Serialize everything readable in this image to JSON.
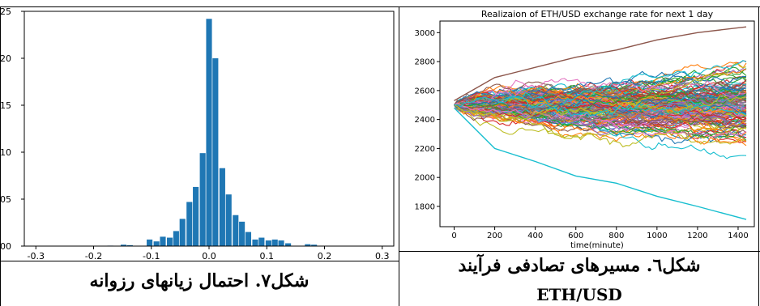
{
  "chart_data": [
    {
      "type": "bar",
      "title": "",
      "xlabel": "",
      "ylabel": "",
      "xlim": [
        -0.32,
        0.32
      ],
      "ylim": [
        0,
        25
      ],
      "x_ticks": [
        "-0.3",
        "-0.2",
        "-0.1",
        "0.0",
        "0.1",
        "0.2",
        "0.3"
      ],
      "y_ticks": [
        "00",
        "05",
        "10",
        "15",
        "20",
        "25"
      ],
      "bar_color": "#1f77b4",
      "bin_width": 0.0114,
      "bins": [
        {
          "x": -0.171,
          "y": 0.05
        },
        {
          "x": -0.148,
          "y": 0.15
        },
        {
          "x": -0.137,
          "y": 0.1
        },
        {
          "x": -0.103,
          "y": 0.7
        },
        {
          "x": -0.091,
          "y": 0.5
        },
        {
          "x": -0.08,
          "y": 1.0
        },
        {
          "x": -0.068,
          "y": 0.9
        },
        {
          "x": -0.057,
          "y": 1.6
        },
        {
          "x": -0.046,
          "y": 2.9
        },
        {
          "x": -0.034,
          "y": 4.7
        },
        {
          "x": -0.023,
          "y": 6.3
        },
        {
          "x": -0.011,
          "y": 9.9
        },
        {
          "x": 0.0,
          "y": 24.2
        },
        {
          "x": 0.011,
          "y": 20.0
        },
        {
          "x": 0.023,
          "y": 8.3
        },
        {
          "x": 0.034,
          "y": 5.5
        },
        {
          "x": 0.046,
          "y": 3.3
        },
        {
          "x": 0.057,
          "y": 2.6
        },
        {
          "x": 0.068,
          "y": 1.5
        },
        {
          "x": 0.08,
          "y": 0.7
        },
        {
          "x": 0.091,
          "y": 0.9
        },
        {
          "x": 0.103,
          "y": 0.6
        },
        {
          "x": 0.114,
          "y": 0.7
        },
        {
          "x": 0.125,
          "y": 0.6
        },
        {
          "x": 0.137,
          "y": 0.3
        },
        {
          "x": 0.171,
          "y": 0.2
        },
        {
          "x": 0.182,
          "y": 0.15
        }
      ]
    },
    {
      "type": "line",
      "title": "Realizaion of ETH/USD exchange rate for next 1 day",
      "xlabel": "time(minute)",
      "ylabel": "",
      "xlim": [
        -70,
        1480
      ],
      "ylim": [
        1660,
        3080
      ],
      "x_ticks": [
        "0",
        "200",
        "400",
        "600",
        "800",
        "1000",
        "1200",
        "1400"
      ],
      "y_ticks": [
        "1800",
        "2000",
        "2200",
        "2400",
        "2600",
        "2800",
        "3000"
      ],
      "start_value": 2500,
      "x_max": 1440,
      "n_paths": 160,
      "highlighted_paths": [
        {
          "color": "#17becf",
          "x": [
            0,
            200,
            400,
            600,
            800,
            1000,
            1200,
            1440
          ],
          "y": [
            2480,
            2200,
            2110,
            2010,
            1960,
            1870,
            1800,
            1710
          ]
        },
        {
          "color": "#8c564b",
          "x": [
            0,
            200,
            400,
            600,
            800,
            1000,
            1200,
            1440
          ],
          "y": [
            2530,
            2690,
            2760,
            2830,
            2880,
            2950,
            3000,
            3040
          ]
        }
      ]
    }
  ],
  "captions": {
    "left": "شکل۷. احتمال زیانهای رزوانه",
    "right_line1": "شکل٦. مسیرهای تصادفی فرآیند",
    "right_line2": "ETH/USD"
  },
  "colors": {
    "palette": [
      "#1f77b4",
      "#ff7f0e",
      "#2ca02c",
      "#d62728",
      "#9467bd",
      "#8c564b",
      "#e377c2",
      "#7f7f7f",
      "#bcbd22",
      "#17becf"
    ]
  }
}
